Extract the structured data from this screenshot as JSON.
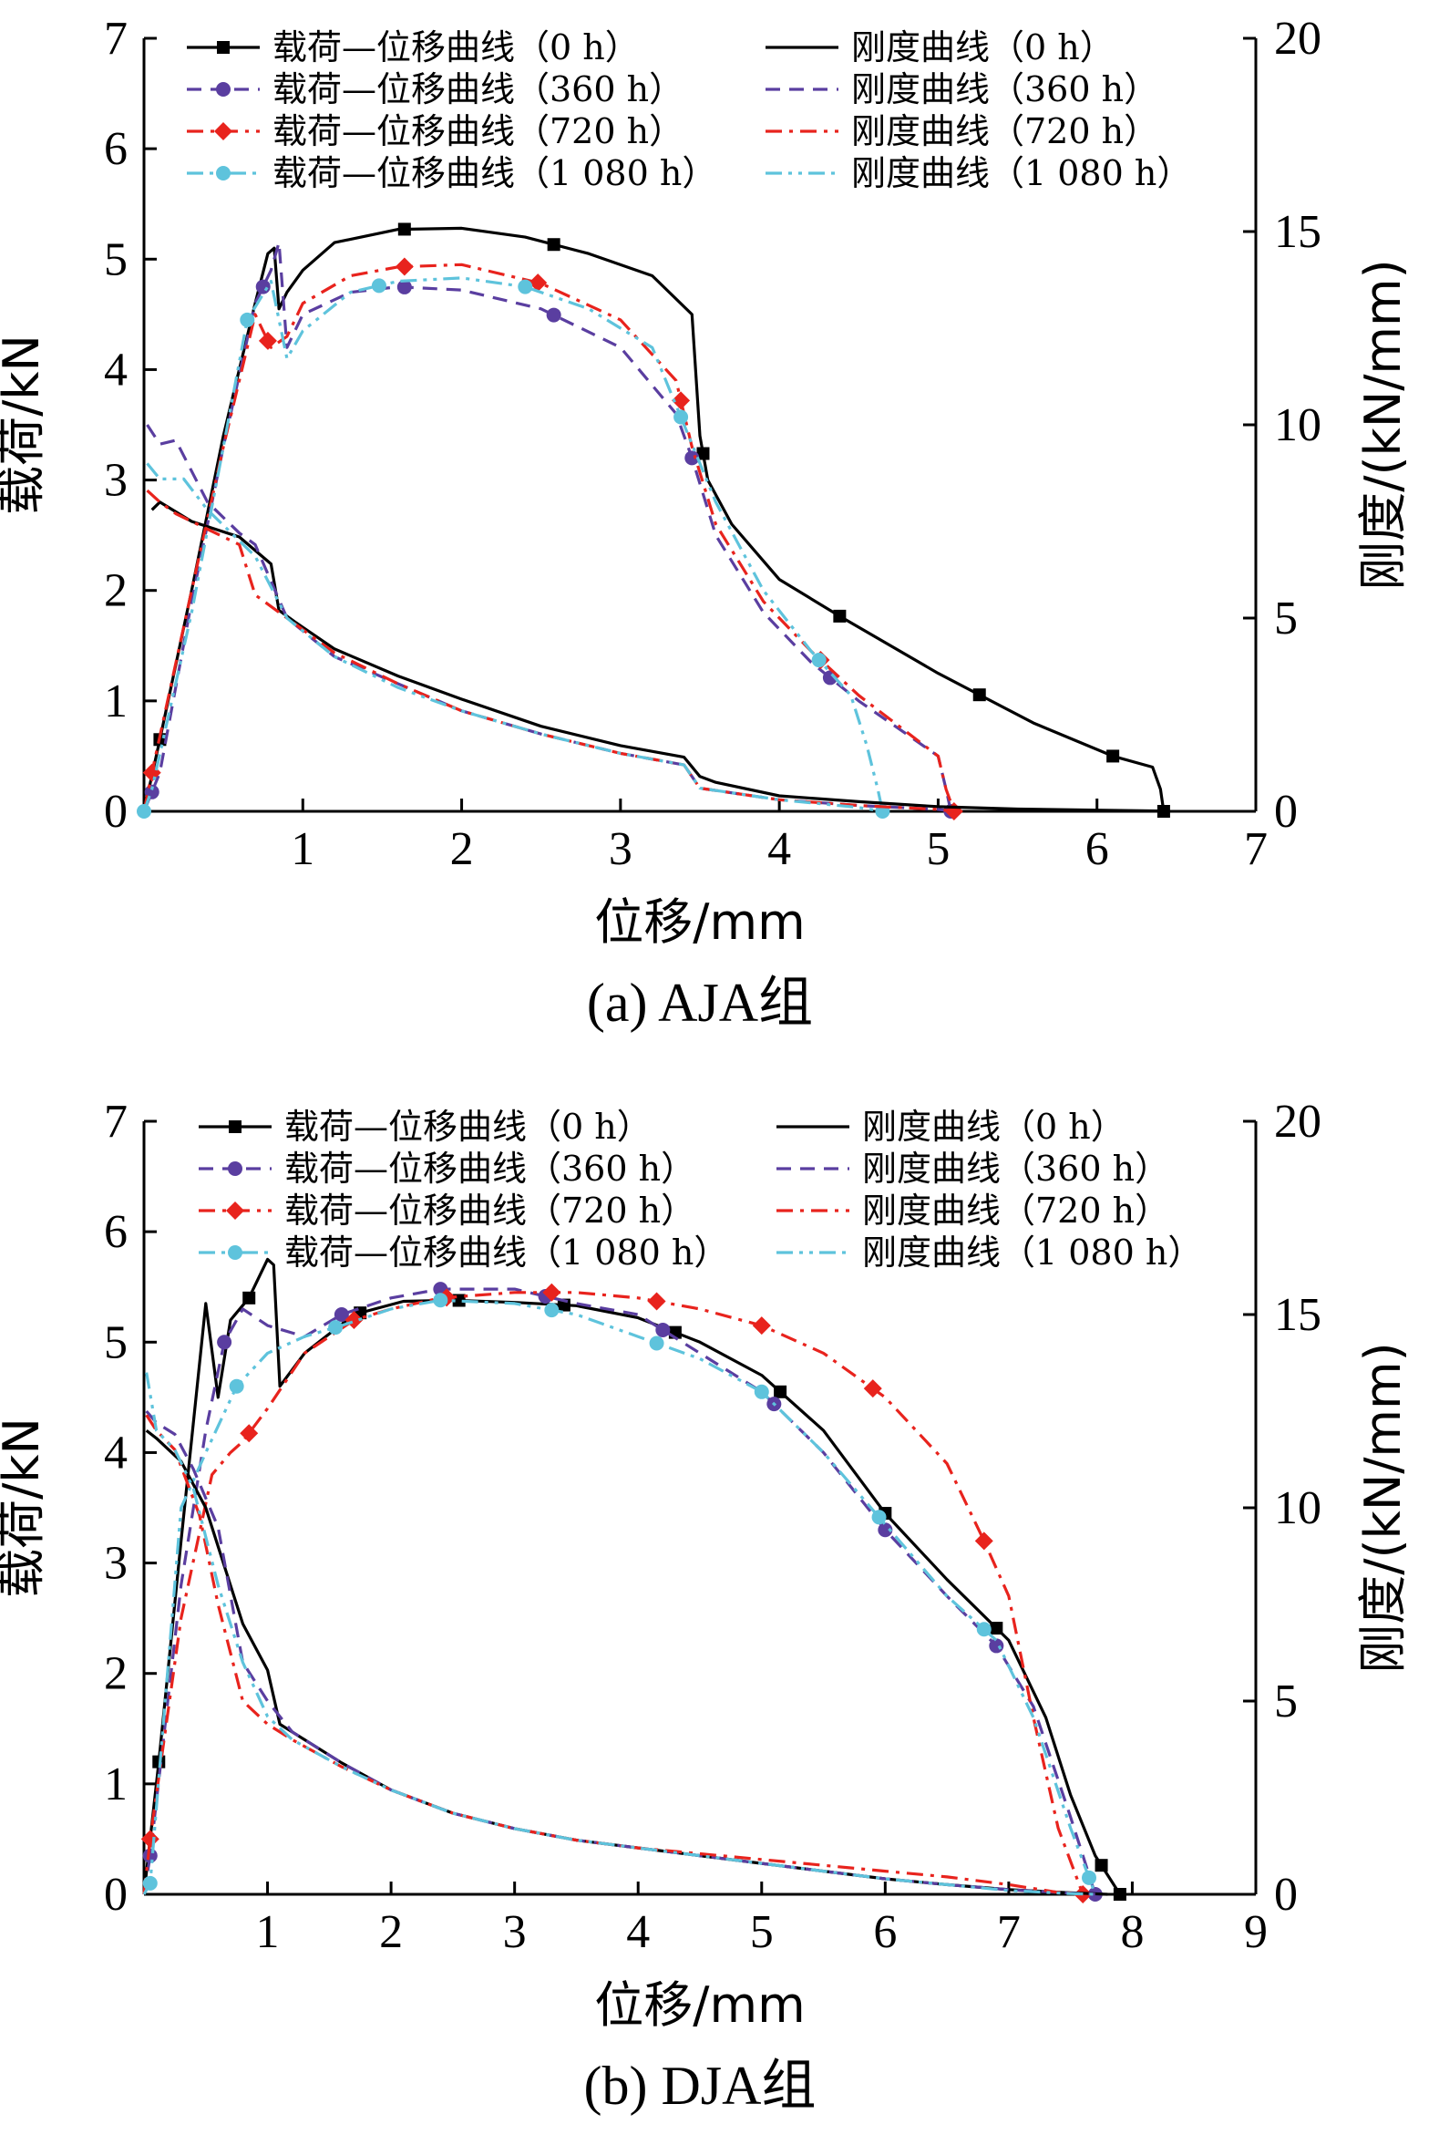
{
  "chart_data": [
    {
      "type": "line",
      "caption": "(a)  AJA组",
      "xlabel": "位移/mm",
      "ylabel": "载荷/kN",
      "y2label": "刚度/(kN/mm)",
      "xlim": [
        0,
        7
      ],
      "ylim": [
        0,
        7
      ],
      "y2lim": [
        0,
        20
      ],
      "xticks": [
        "1",
        "2",
        "3",
        "4",
        "5",
        "6",
        "7"
      ],
      "yticks": [
        "0",
        "1",
        "2",
        "3",
        "4",
        "5",
        "6",
        "7"
      ],
      "y2ticks": [
        "0",
        "5",
        "10",
        "15",
        "20"
      ],
      "legend_position": "top",
      "series": [
        {
          "name": "载荷—位移曲线（0 h）",
          "axis": "left",
          "color": "#000000",
          "dash": "solid",
          "marker": "square",
          "x": [
            0,
            0.1,
            0.3,
            0.5,
            0.7,
            0.78,
            0.82,
            0.85,
            0.9,
            1.0,
            1.2,
            1.6,
            2.0,
            2.4,
            2.8,
            3.2,
            3.45,
            3.5,
            3.55,
            3.7,
            4.0,
            4.4,
            5.0,
            5.6,
            6.1,
            6.35,
            6.4,
            6.42
          ],
          "y": [
            0,
            0.65,
            2.0,
            3.4,
            4.6,
            5.05,
            5.1,
            4.55,
            4.7,
            4.9,
            5.15,
            5.27,
            5.28,
            5.2,
            5.05,
            4.85,
            4.5,
            3.4,
            3.0,
            2.6,
            2.1,
            1.75,
            1.25,
            0.8,
            0.5,
            0.4,
            0.2,
            0.0
          ],
          "markers_x": [
            0.1,
            1.64,
            2.58,
            3.52,
            4.38,
            5.26,
            6.1,
            6.42
          ]
        },
        {
          "name": "载荷—位移曲线（360 h）",
          "axis": "left",
          "color": "#5a3ea0",
          "dash": "dashed",
          "marker": "circle",
          "x": [
            0,
            0.1,
            0.3,
            0.5,
            0.7,
            0.8,
            0.85,
            0.9,
            1.0,
            1.3,
            1.6,
            2.0,
            2.5,
            3.0,
            3.35,
            3.45,
            3.6,
            3.9,
            4.2,
            4.5,
            4.8,
            5.0,
            5.05,
            5.08
          ],
          "y": [
            0,
            0.35,
            1.9,
            3.3,
            4.6,
            4.9,
            5.15,
            4.2,
            4.5,
            4.7,
            4.75,
            4.72,
            4.55,
            4.2,
            3.6,
            3.2,
            2.5,
            1.8,
            1.35,
            1.0,
            0.7,
            0.5,
            0.2,
            0.0
          ],
          "markers_x": [
            0.05,
            0.75,
            1.64,
            2.58,
            3.45,
            4.32,
            5.08
          ]
        },
        {
          "name": "载荷—位移曲线（720 h）",
          "axis": "left",
          "color": "#e8231d",
          "dash": "dashdot",
          "marker": "diamond",
          "x": [
            0,
            0.05,
            0.3,
            0.5,
            0.7,
            0.8,
            0.9,
            1.0,
            1.3,
            1.6,
            2.0,
            2.5,
            3.0,
            3.35,
            3.45,
            3.6,
            3.9,
            4.2,
            4.5,
            4.8,
            5.0,
            5.05,
            5.1
          ],
          "y": [
            0,
            0.35,
            2.0,
            3.3,
            4.5,
            4.2,
            4.3,
            4.6,
            4.85,
            4.93,
            4.95,
            4.78,
            4.45,
            3.9,
            3.3,
            2.6,
            1.9,
            1.45,
            1.05,
            0.72,
            0.5,
            0.2,
            0.0
          ],
          "markers_x": [
            0.05,
            0.78,
            1.64,
            2.48,
            3.38,
            4.26,
            5.1
          ]
        },
        {
          "name": "载荷—位移曲线（1 080 h）",
          "axis": "left",
          "color": "#5ec3dc",
          "dash": "dashdotdot",
          "marker": "circle",
          "x": [
            0,
            0.05,
            0.3,
            0.5,
            0.65,
            0.8,
            0.9,
            1.0,
            1.3,
            1.6,
            2.0,
            2.4,
            2.8,
            3.2,
            3.4,
            3.6,
            3.9,
            4.2,
            4.45,
            4.55,
            4.62,
            4.65
          ],
          "y": [
            0,
            0.2,
            1.8,
            3.3,
            4.45,
            4.8,
            4.1,
            4.35,
            4.7,
            4.8,
            4.83,
            4.75,
            4.55,
            4.2,
            3.5,
            2.8,
            2.0,
            1.45,
            1.05,
            0.6,
            0.2,
            0.0
          ],
          "markers_x": [
            0,
            0.65,
            1.48,
            2.4,
            3.38,
            4.25,
            4.65
          ]
        },
        {
          "name": "刚度曲线（0 h）",
          "axis": "right",
          "color": "#000000",
          "dash": "solid",
          "marker": "none",
          "x": [
            0.05,
            0.1,
            0.3,
            0.6,
            0.8,
            0.85,
            0.95,
            1.2,
            1.6,
            2.0,
            2.5,
            3.0,
            3.4,
            3.5,
            3.6,
            4.0,
            4.5,
            5.0,
            5.5,
            6.0,
            6.4
          ],
          "y": [
            7.8,
            8.0,
            7.5,
            7.1,
            6.4,
            5.2,
            4.9,
            4.2,
            3.5,
            2.9,
            2.2,
            1.7,
            1.4,
            0.9,
            0.75,
            0.4,
            0.25,
            0.12,
            0.06,
            0.03,
            0.01
          ]
        },
        {
          "name": "刚度曲线（360 h）",
          "axis": "right",
          "color": "#5a3ea0",
          "dash": "dashed",
          "marker": "none",
          "x": [
            0.02,
            0.1,
            0.2,
            0.4,
            0.6,
            0.7,
            0.9,
            1.2,
            1.6,
            2.0,
            2.5,
            3.0,
            3.4,
            3.5,
            4.0,
            4.5,
            5.0,
            5.1
          ],
          "y": [
            10.0,
            9.5,
            9.6,
            8.0,
            7.2,
            6.9,
            5.0,
            4.0,
            3.3,
            2.6,
            2.0,
            1.5,
            1.2,
            0.6,
            0.3,
            0.15,
            0.05,
            0.0
          ]
        },
        {
          "name": "刚度曲线（720 h）",
          "axis": "right",
          "color": "#e8231d",
          "dash": "dashdot",
          "marker": "none",
          "x": [
            0.02,
            0.1,
            0.2,
            0.4,
            0.6,
            0.7,
            0.9,
            1.2,
            1.6,
            2.0,
            2.5,
            3.0,
            3.4,
            3.5,
            4.0,
            4.5,
            5.0,
            5.1
          ],
          "y": [
            8.3,
            8.0,
            7.7,
            7.3,
            6.9,
            5.6,
            5.0,
            4.1,
            3.3,
            2.6,
            2.0,
            1.5,
            1.2,
            0.6,
            0.3,
            0.15,
            0.05,
            0.0
          ]
        },
        {
          "name": "刚度曲线（1 080 h）",
          "axis": "right",
          "color": "#5ec3dc",
          "dash": "dashdotdot",
          "marker": "none",
          "x": [
            0.02,
            0.1,
            0.25,
            0.4,
            0.6,
            0.7,
            0.9,
            1.2,
            1.6,
            2.0,
            2.5,
            3.0,
            3.4,
            3.5,
            4.0,
            4.5,
            4.65
          ],
          "y": [
            9.0,
            8.6,
            8.6,
            7.8,
            7.0,
            6.6,
            5.0,
            4.0,
            3.2,
            2.6,
            2.0,
            1.5,
            1.2,
            0.6,
            0.3,
            0.1,
            0.0
          ]
        }
      ]
    },
    {
      "type": "line",
      "caption": "(b)  DJA组",
      "xlabel": "位移/mm",
      "ylabel": "载荷/kN",
      "y2label": "刚度/(kN/mm)",
      "xlim": [
        0,
        9
      ],
      "ylim": [
        0,
        7
      ],
      "y2lim": [
        0,
        20
      ],
      "xticks": [
        "1",
        "2",
        "3",
        "4",
        "5",
        "6",
        "7",
        "8",
        "9"
      ],
      "yticks": [
        "0",
        "1",
        "2",
        "3",
        "4",
        "5",
        "6",
        "7"
      ],
      "y2ticks": [
        "0",
        "5",
        "10",
        "15",
        "20"
      ],
      "legend_position": "top",
      "series": [
        {
          "name": "载荷—位移曲线（0 h）",
          "axis": "left",
          "color": "#000000",
          "dash": "solid",
          "marker": "square",
          "x": [
            0,
            0.12,
            0.3,
            0.5,
            0.6,
            0.7,
            0.85,
            1.0,
            1.05,
            1.1,
            1.3,
            1.7,
            2.1,
            2.5,
            3.0,
            3.5,
            4.0,
            4.5,
            5.0,
            5.5,
            6.0,
            6.5,
            7.0,
            7.3,
            7.5,
            7.7,
            7.9
          ],
          "y": [
            0,
            1.2,
            3.2,
            5.35,
            4.5,
            5.2,
            5.4,
            5.75,
            5.7,
            4.6,
            4.9,
            5.25,
            5.37,
            5.38,
            5.36,
            5.33,
            5.22,
            5.0,
            4.7,
            4.2,
            3.45,
            2.85,
            2.3,
            1.6,
            0.9,
            0.35,
            0.0
          ],
          "markers_x": [
            0.12,
            0.85,
            1.75,
            2.55,
            3.4,
            4.3,
            5.15,
            6.0,
            6.9,
            7.75,
            7.9
          ]
        },
        {
          "name": "载荷—位移曲线（360 h）",
          "axis": "left",
          "color": "#5a3ea0",
          "dash": "dashed",
          "marker": "circle",
          "x": [
            0,
            0.05,
            0.3,
            0.5,
            0.65,
            0.8,
            1.0,
            1.3,
            1.6,
            2.0,
            2.4,
            3.0,
            3.5,
            4.0,
            4.5,
            5.0,
            5.5,
            6.0,
            6.5,
            6.9,
            7.2,
            7.5,
            7.7
          ],
          "y": [
            0,
            0.35,
            2.8,
            4.2,
            5.0,
            5.3,
            5.15,
            5.05,
            5.25,
            5.4,
            5.48,
            5.48,
            5.35,
            5.25,
            4.9,
            4.55,
            4.0,
            3.3,
            2.7,
            2.25,
            1.7,
            0.7,
            0.0
          ],
          "markers_x": [
            0.05,
            0.65,
            1.6,
            2.4,
            3.25,
            4.2,
            5.1,
            6.0,
            6.9,
            7.7
          ]
        },
        {
          "name": "载荷—位移曲线（720 h）",
          "axis": "left",
          "color": "#e8231d",
          "dash": "dashdot",
          "marker": "diamond",
          "x": [
            0,
            0.05,
            0.3,
            0.55,
            0.7,
            0.8,
            1.0,
            1.3,
            1.7,
            2.0,
            2.4,
            3.0,
            3.5,
            4.0,
            4.5,
            5.0,
            5.5,
            6.0,
            6.5,
            6.8,
            7.0,
            7.2,
            7.4,
            7.6
          ],
          "y": [
            0,
            0.5,
            2.5,
            3.8,
            4.0,
            4.1,
            4.4,
            4.9,
            5.2,
            5.3,
            5.4,
            5.45,
            5.45,
            5.4,
            5.3,
            5.15,
            4.9,
            4.5,
            3.9,
            3.2,
            2.7,
            1.6,
            0.6,
            0.0
          ],
          "markers_x": [
            0.05,
            0.85,
            1.7,
            2.45,
            3.3,
            4.15,
            5.0,
            5.9,
            6.8,
            7.6
          ]
        },
        {
          "name": "载荷—位移曲线（1 080 h）",
          "axis": "left",
          "color": "#5ec3dc",
          "dash": "dashdotdot",
          "marker": "circle",
          "x": [
            0,
            0.05,
            0.3,
            0.5,
            0.75,
            1.0,
            1.3,
            1.6,
            2.0,
            2.4,
            3.0,
            3.5,
            4.0,
            4.5,
            5.0,
            5.5,
            6.0,
            6.5,
            6.9,
            7.2,
            7.5,
            7.7
          ],
          "y": [
            0,
            0.1,
            3.5,
            4.0,
            4.6,
            4.9,
            5.05,
            5.15,
            5.3,
            5.38,
            5.35,
            5.25,
            5.05,
            4.85,
            4.55,
            4.0,
            3.35,
            2.7,
            2.3,
            1.6,
            0.6,
            0.0
          ],
          "markers_x": [
            0.05,
            0.75,
            1.55,
            2.4,
            3.3,
            4.15,
            5.0,
            5.95,
            6.8,
            7.65
          ]
        },
        {
          "name": "刚度曲线（0 h）",
          "axis": "right",
          "color": "#000000",
          "dash": "solid",
          "marker": "none",
          "x": [
            0.02,
            0.1,
            0.3,
            0.5,
            0.6,
            0.8,
            1.0,
            1.1,
            1.3,
            1.6,
            2.0,
            2.5,
            3.0,
            3.5,
            4.0,
            4.5,
            5.0,
            5.5,
            6.0,
            6.5,
            7.0,
            7.5,
            7.8
          ],
          "y": [
            12.0,
            11.8,
            11.2,
            10.0,
            9.0,
            7.0,
            5.8,
            4.4,
            4.0,
            3.4,
            2.7,
            2.1,
            1.7,
            1.4,
            1.2,
            1.0,
            0.8,
            0.6,
            0.4,
            0.25,
            0.12,
            0.04,
            0.0
          ]
        },
        {
          "name": "刚度曲线（360 h）",
          "axis": "right",
          "color": "#5a3ea0",
          "dash": "dashed",
          "marker": "none",
          "x": [
            0.02,
            0.1,
            0.25,
            0.4,
            0.6,
            0.8,
            1.0,
            1.2,
            1.6,
            2.0,
            2.5,
            3.0,
            3.5,
            4.0,
            4.5,
            5.0,
            5.5,
            6.0,
            6.5,
            7.0,
            7.5,
            7.7
          ],
          "y": [
            12.5,
            12.2,
            11.9,
            11.0,
            9.5,
            6.0,
            5.0,
            4.2,
            3.4,
            2.7,
            2.1,
            1.7,
            1.4,
            1.2,
            1.0,
            0.8,
            0.6,
            0.4,
            0.25,
            0.12,
            0.03,
            0.0
          ]
        },
        {
          "name": "刚度曲线（720 h）",
          "axis": "right",
          "color": "#e8231d",
          "dash": "dashdot",
          "marker": "none",
          "x": [
            0.02,
            0.1,
            0.25,
            0.45,
            0.6,
            0.8,
            1.0,
            1.2,
            1.6,
            2.0,
            2.5,
            3.0,
            3.5,
            4.0,
            4.5,
            5.0,
            5.5,
            6.0,
            6.5,
            7.0,
            7.4,
            7.6
          ],
          "y": [
            12.4,
            12.0,
            11.5,
            9.8,
            7.5,
            5.0,
            4.4,
            4.0,
            3.3,
            2.7,
            2.1,
            1.7,
            1.4,
            1.2,
            1.05,
            0.9,
            0.75,
            0.6,
            0.45,
            0.25,
            0.05,
            0.0
          ]
        },
        {
          "name": "刚度曲线（1 080 h）",
          "axis": "right",
          "color": "#5ec3dc",
          "dash": "dashdotdot",
          "marker": "none",
          "x": [
            0.02,
            0.1,
            0.25,
            0.4,
            0.6,
            0.8,
            1.0,
            1.2,
            1.6,
            2.0,
            2.5,
            3.0,
            3.5,
            4.0,
            4.5,
            5.0,
            5.5,
            6.0,
            6.5,
            7.0,
            7.5,
            7.7
          ],
          "y": [
            13.5,
            12.0,
            11.5,
            10.5,
            8.0,
            6.0,
            4.6,
            4.0,
            3.3,
            2.7,
            2.1,
            1.7,
            1.4,
            1.2,
            1.0,
            0.8,
            0.6,
            0.4,
            0.25,
            0.1,
            0.02,
            0.0
          ]
        }
      ]
    }
  ]
}
